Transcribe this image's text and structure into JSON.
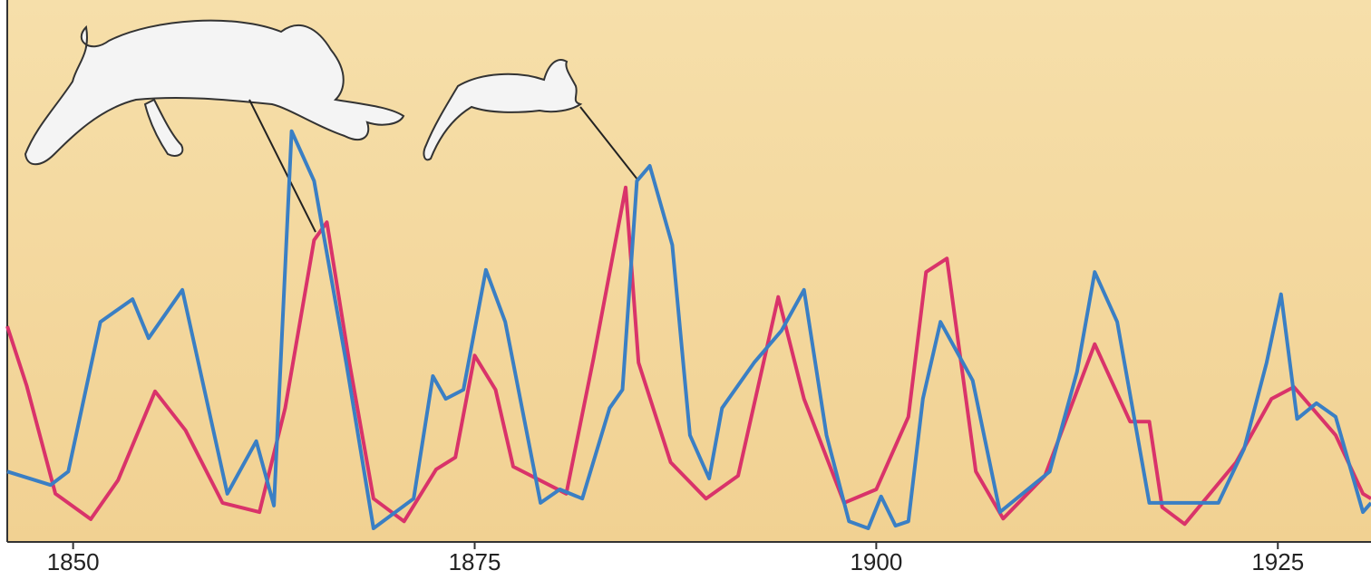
{
  "chart_data": {
    "type": "line",
    "xlim": [
      1845.9,
      1930.8
    ],
    "xticks": [
      1850,
      1875,
      1900,
      1925
    ],
    "ylim": [
      0,
      100
    ],
    "series": [
      {
        "color": "#3a7fc4",
        "x": [
          1845.9,
          1848.6,
          1849.7,
          1851.7,
          1853.7,
          1854.7,
          1856.8,
          1859.6,
          1861.4,
          1862.5,
          1863.6,
          1865,
          1867,
          1868.7,
          1871.2,
          1872.4,
          1873.2,
          1874.3,
          1875.7,
          1876.9,
          1879.1,
          1880.3,
          1881.7,
          1883.4,
          1884.2,
          1885.1,
          1885.9,
          1887.3,
          1888.4,
          1889.6,
          1890.4,
          1892.4,
          1894.1,
          1895.5,
          1896.9,
          1898.3,
          1899.5,
          1900.3,
          1901.2,
          1902,
          1902.9,
          1904,
          1906,
          1907.7,
          1910.8,
          1912.5,
          1913.6,
          1915,
          1917,
          1921.3,
          1922.9,
          1924.3,
          1925.2,
          1926.2,
          1927.4,
          1928.6,
          1930.3,
          1930.8
        ],
        "values": [
          13,
          10.5,
          13,
          40.6,
          44.8,
          37.6,
          46.5,
          8.9,
          18.6,
          6.7,
          75.8,
          66.6,
          33.1,
          2.5,
          8,
          30.6,
          26.4,
          28.1,
          50.2,
          40.6,
          7.2,
          9.7,
          8,
          24.7,
          28.1,
          66.6,
          69.4,
          54.8,
          19.7,
          11.7,
          24.7,
          33.1,
          39,
          46.5,
          19.7,
          3.8,
          2.5,
          8.4,
          3,
          3.8,
          26.4,
          40.6,
          29.8,
          5.5,
          13,
          31.4,
          49.8,
          40.6,
          7.2,
          7.2,
          17.2,
          33.1,
          45.7,
          22.7,
          25.6,
          23.1,
          5.5,
          7.2
        ]
      },
      {
        "color": "#d9336a",
        "x": [
          1845.9,
          1847.1,
          1848.9,
          1851.1,
          1852.8,
          1855.1,
          1857,
          1859.3,
          1861.6,
          1863.2,
          1865,
          1865.8,
          1867.2,
          1868.7,
          1870.6,
          1872.6,
          1873.8,
          1875,
          1876.3,
          1877.4,
          1880.7,
          1882.4,
          1884.4,
          1885.2,
          1887.2,
          1889.4,
          1891.4,
          1893.9,
          1895.5,
          1898,
          1900,
          1902,
          1903.1,
          1904.4,
          1906.2,
          1907.9,
          1910.5,
          1913.6,
          1915.8,
          1917,
          1917.8,
          1919.2,
          1922.4,
          1924.6,
          1926,
          1928.6,
          1930.3,
          1930.8
        ],
        "values": [
          39.8,
          28.9,
          8.9,
          4.2,
          11.4,
          27.8,
          20.6,
          7.2,
          5.5,
          24.7,
          55.7,
          59,
          33.1,
          8,
          3.8,
          13.4,
          15.6,
          34.4,
          28.1,
          13.9,
          8.9,
          33.9,
          65.4,
          33.1,
          14.7,
          8,
          12.2,
          45.2,
          26.4,
          7.2,
          9.7,
          23.1,
          49.8,
          52.3,
          13,
          4.3,
          12.2,
          36.5,
          22.2,
          22.2,
          6.4,
          3.3,
          14.7,
          26.4,
          28.6,
          19.7,
          8.9,
          8
        ]
      }
    ]
  }
}
